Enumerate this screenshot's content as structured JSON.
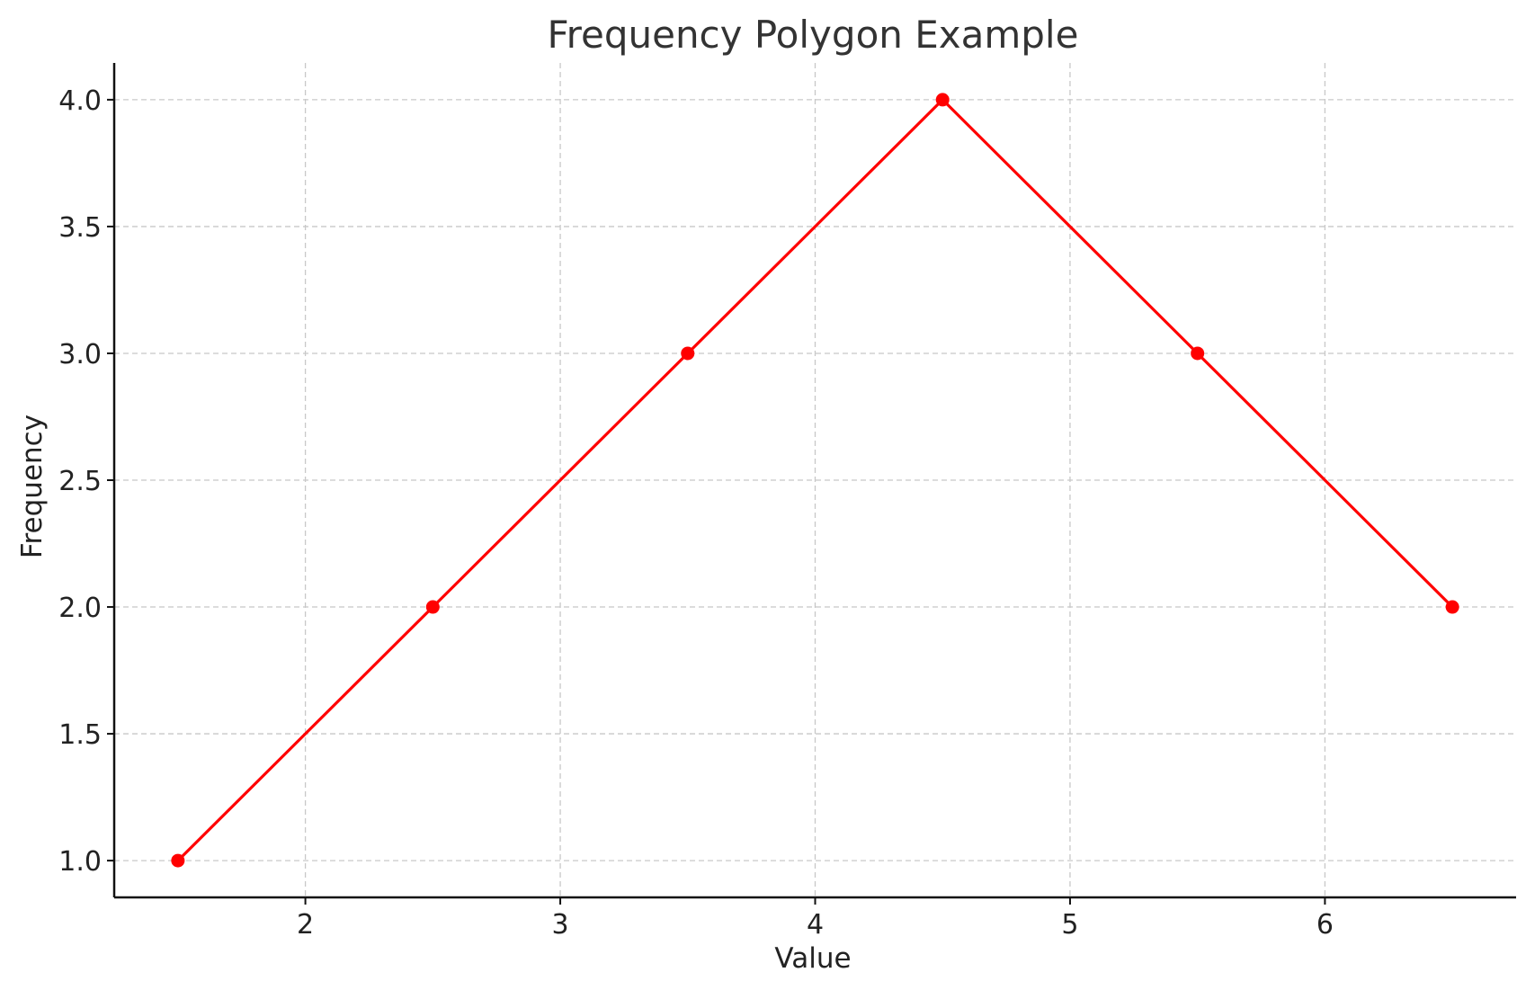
{
  "chart_data": {
    "type": "line",
    "title": "Frequency Polygon Example",
    "xlabel": "Value",
    "ylabel": "Frequency",
    "x": [
      1.5,
      2.5,
      3.5,
      4.5,
      5.5,
      6.5
    ],
    "series": [
      {
        "values": [
          1,
          2,
          3,
          4,
          3,
          2
        ],
        "color": "#ff0000",
        "marker": "circle"
      }
    ],
    "xlim": [
      1.25,
      6.75
    ],
    "ylim": [
      0.855,
      4.145
    ],
    "xticks": [
      2,
      3,
      4,
      5,
      6
    ],
    "xtick_labels": [
      "2",
      "3",
      "4",
      "5",
      "6"
    ],
    "yticks": [
      1.0,
      1.5,
      2.0,
      2.5,
      3.0,
      3.5,
      4.0
    ],
    "ytick_labels": [
      "1.0",
      "1.5",
      "2.0",
      "2.5",
      "3.0",
      "3.5",
      "4.0"
    ],
    "grid": true,
    "legend": "none"
  }
}
